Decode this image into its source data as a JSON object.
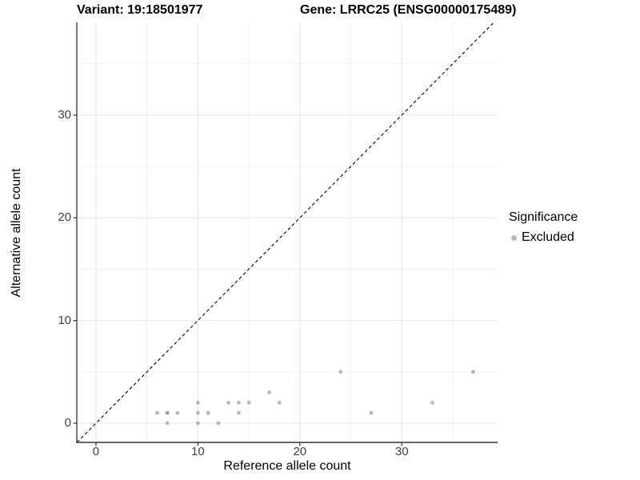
{
  "header": {
    "variant_title": "Variant: 19:18501977",
    "gene_title": "Gene: LRRC25 (ENSG00000175489)"
  },
  "chart_data": {
    "type": "scatter",
    "title": "Variant: 19:18501977  /  Gene: LRRC25 (ENSG00000175489)",
    "xlabel": "Reference allele count",
    "ylabel": "Alternative allele count",
    "xlim": [
      -1.88,
      39.4
    ],
    "ylim": [
      -1.87,
      39.03
    ],
    "x_ticks": [
      0,
      10,
      20,
      30
    ],
    "y_ticks": [
      0,
      10,
      20,
      30
    ],
    "minor_grid_values": [
      5,
      15,
      25,
      35
    ],
    "grid": "on",
    "diagonal_line": {
      "slope": 1,
      "intercept": 0,
      "style": "dashed",
      "color": "#000000"
    },
    "series": [
      {
        "name": "Excluded",
        "color": "#8c8c8c",
        "opacity": 0.61,
        "points": [
          [
            6,
            1
          ],
          [
            7,
            0
          ],
          [
            7,
            1
          ],
          [
            7,
            1
          ],
          [
            8,
            1
          ],
          [
            10,
            0
          ],
          [
            10,
            1
          ],
          [
            10,
            2
          ],
          [
            11,
            1
          ],
          [
            12,
            0
          ],
          [
            13,
            2
          ],
          [
            14,
            1
          ],
          [
            14,
            2
          ],
          [
            15,
            2
          ],
          [
            17,
            3
          ],
          [
            18,
            2
          ],
          [
            24,
            5
          ],
          [
            27,
            1
          ],
          [
            33,
            2
          ],
          [
            37,
            5
          ]
        ]
      }
    ],
    "legend": {
      "title": "Significance",
      "position": "right",
      "items": [
        {
          "label": "Excluded",
          "color": "#b9b9b9"
        }
      ]
    },
    "colors": {
      "major_grid": "#e7e7e7",
      "minor_grid": "#f1f1f1",
      "axis_line": "#333333",
      "tick_text": "#404040",
      "point": "#b9b9b9"
    }
  }
}
